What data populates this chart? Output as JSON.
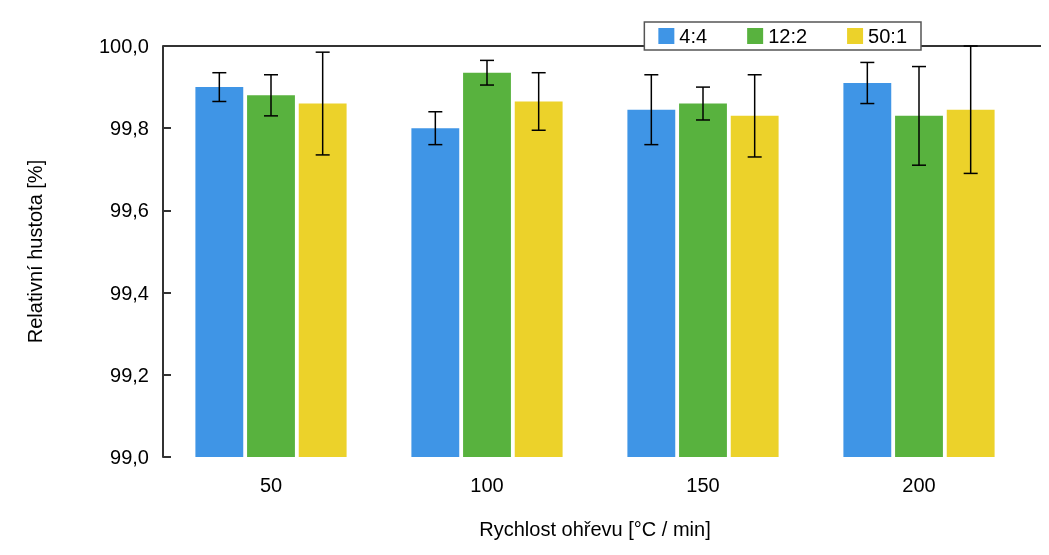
{
  "chart_data": {
    "type": "bar",
    "xlabel": "Rychlost ohřevu [°C / min]",
    "ylabel": "Relativní hustota [%]",
    "categories": [
      "50",
      "100",
      "150",
      "200"
    ],
    "series": [
      {
        "name": "4:4",
        "color": "#3f95e6",
        "values": [
          99.9,
          99.8,
          99.845,
          99.91
        ],
        "errors": [
          0.035,
          0.04,
          0.085,
          0.05
        ]
      },
      {
        "name": "12:2",
        "color": "#58b23e",
        "values": [
          99.88,
          99.935,
          99.86,
          99.83
        ],
        "errors": [
          0.05,
          0.03,
          0.04,
          0.12
        ]
      },
      {
        "name": "50:1",
        "color": "#ecd22a",
        "values": [
          99.86,
          99.865,
          99.83,
          99.845
        ],
        "errors": [
          0.125,
          0.07,
          0.1,
          [
            99.69,
            100.0
          ]
        ]
      }
    ],
    "ylim": [
      99.0,
      100.0
    ],
    "yticks": [
      {
        "value": 99.0,
        "label": "99,0"
      },
      {
        "value": 99.2,
        "label": "99,2"
      },
      {
        "value": 99.4,
        "label": "99,4"
      },
      {
        "value": 99.6,
        "label": "99,6"
      },
      {
        "value": 99.8,
        "label": "99,8"
      },
      {
        "value": 100.0,
        "label": "100,0"
      }
    ],
    "grid": false,
    "legend": "top right"
  }
}
